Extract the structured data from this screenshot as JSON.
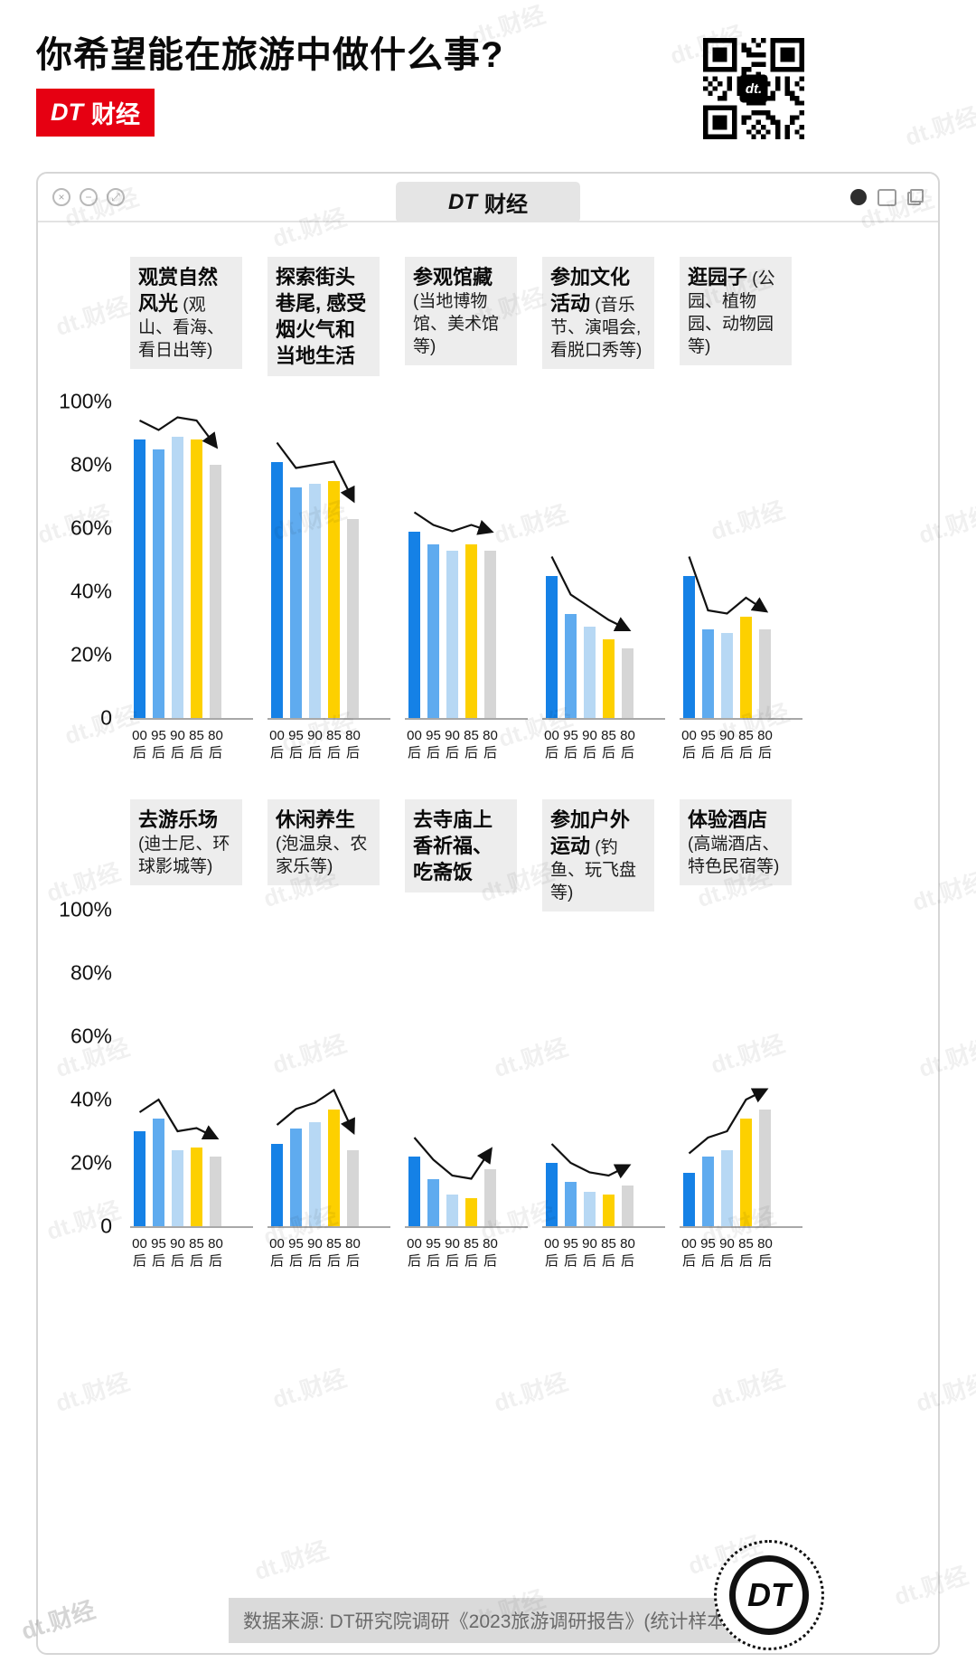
{
  "page": {
    "title": "你希望能在旅游中做什么事?",
    "brand_dt": "DT",
    "brand_cj": "财经",
    "qr_logo": "dt.",
    "source_note": "数据来源: DT研究院调研《2023旅游调研报告》(统计样本1505)",
    "footer_logo_text": "DT",
    "watermark_text": "dt.财经"
  },
  "window": {
    "title_dt": "DT",
    "title_cj": "财经",
    "controls": [
      "×",
      "−",
      "⤢"
    ]
  },
  "chart_data": {
    "type": "bar",
    "unit": "%",
    "categories": [
      "00后",
      "95后",
      "90后",
      "85后",
      "80后"
    ],
    "y_ticks": [
      "100%",
      "80%",
      "60%",
      "40%",
      "20%",
      "0"
    ],
    "ylim": [
      0,
      100
    ],
    "grid": false,
    "series_colors": [
      "#1581e6",
      "#5fabef",
      "#b7d8f4",
      "#fdd000",
      "#d6d6d6"
    ],
    "rows": [
      {
        "groups": [
          {
            "name": "观赏自然风光",
            "desc": "(观山、看海、看日出等)",
            "values": [
              88,
              85,
              89,
              88,
              80
            ]
          },
          {
            "name": "探索街头巷尾, 感受烟火气和当地生活",
            "desc": "",
            "values": [
              81,
              73,
              74,
              75,
              63
            ]
          },
          {
            "name": "参观馆藏",
            "desc": "(当地博物馆、美术馆等)",
            "values": [
              59,
              55,
              53,
              55,
              53
            ]
          },
          {
            "name": "参加文化活动",
            "desc": "(音乐节、演唱会, 看脱口秀等)",
            "values": [
              45,
              33,
              29,
              25,
              22
            ]
          },
          {
            "name": "逛园子",
            "desc": "(公园、植物园、动物园等)",
            "values": [
              45,
              28,
              27,
              32,
              28
            ]
          }
        ]
      },
      {
        "groups": [
          {
            "name": "去游乐场",
            "desc": "(迪士尼、环球影城等)",
            "values": [
              30,
              34,
              24,
              25,
              22
            ]
          },
          {
            "name": "休闲养生",
            "desc": "(泡温泉、农家乐等)",
            "values": [
              26,
              31,
              33,
              37,
              24
            ]
          },
          {
            "name": "去寺庙上香祈福、吃斋饭",
            "desc": "",
            "values": [
              22,
              15,
              10,
              9,
              18
            ]
          },
          {
            "name": "参加户外运动",
            "desc": "(钓鱼、玩飞盘等)",
            "values": [
              20,
              14,
              11,
              10,
              13
            ]
          },
          {
            "name": "体验酒店",
            "desc": "(高端酒店、特色民宿等)",
            "values": [
              17,
              22,
              24,
              34,
              37
            ]
          }
        ]
      }
    ]
  }
}
